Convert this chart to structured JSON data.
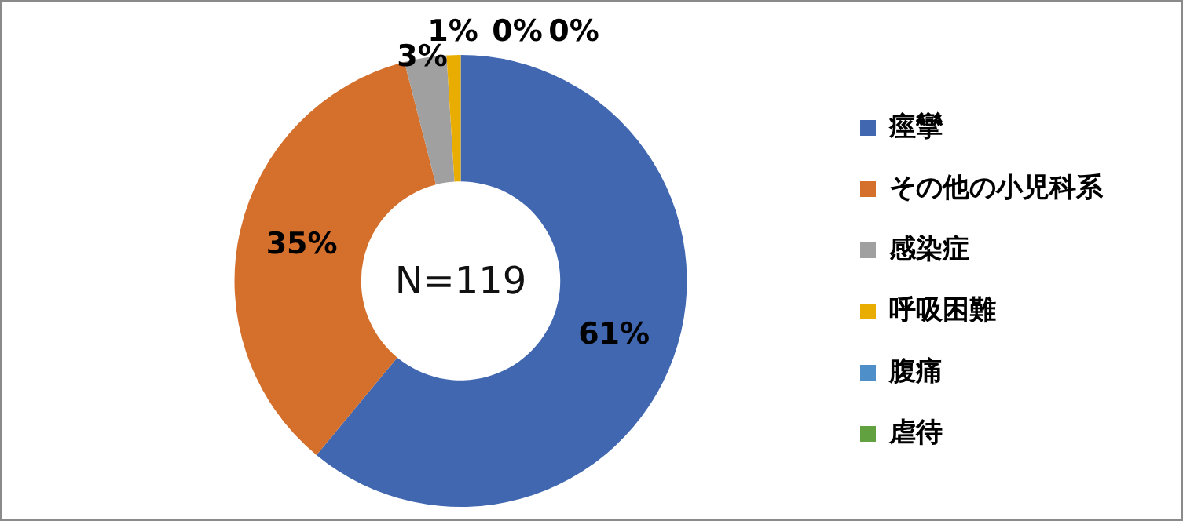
{
  "chart_data": {
    "type": "donut",
    "categories": [
      "痙攣",
      "その他の小児科系",
      "感染症",
      "呼吸困難",
      "腹痛",
      "虐待"
    ],
    "values": [
      61,
      35,
      3,
      1,
      0,
      0
    ],
    "value_labels": [
      "61%",
      "35%",
      "3%",
      "1%",
      "0%",
      "0%"
    ],
    "colors": [
      "#4167b1",
      "#d46f2c",
      "#a0a0a0",
      "#e8ad00",
      "#4f8fc9",
      "#62a13f"
    ],
    "annotations": [
      "N=119"
    ],
    "legend": "right"
  }
}
